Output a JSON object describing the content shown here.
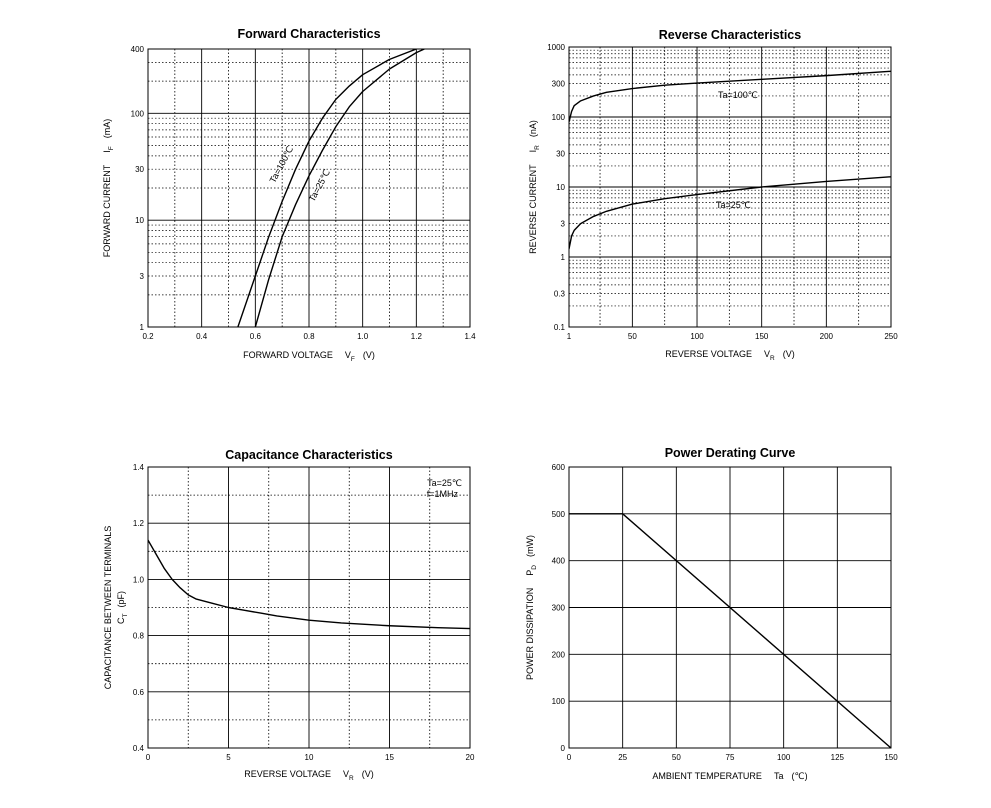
{
  "chart_data": [
    {
      "type": "line",
      "title": "Forward Characteristics",
      "xlabel": "FORWARD VOLTAGE",
      "xlabel_symbol": "V",
      "xlabel_subscript": "F",
      "xlabel_unit": "(V)",
      "ylabel": "FORWARD CURRENT",
      "ylabel_symbol": "I",
      "ylabel_subscript": "F",
      "ylabel_unit": "(mA)",
      "xlim": [
        0.2,
        1.4
      ],
      "ylim": [
        1,
        400
      ],
      "yscale": "log",
      "x_ticks": [
        "0.2",
        "0.4",
        "0.6",
        "0.8",
        "1.0",
        "1.2",
        "1.4"
      ],
      "y_ticks": [
        "1",
        "3",
        "10",
        "30",
        "100",
        "400"
      ],
      "grid": true,
      "series": [
        {
          "name": "Ta=100℃",
          "x": [
            0.535,
            0.6,
            0.65,
            0.7,
            0.75,
            0.8,
            0.85,
            0.9,
            0.95,
            1.0,
            1.1,
            1.2
          ],
          "y": [
            1,
            3,
            7,
            15,
            30,
            55,
            90,
            135,
            180,
            230,
            320,
            400
          ]
        },
        {
          "name": "Ta=25℃",
          "x": [
            0.6,
            0.65,
            0.7,
            0.75,
            0.8,
            0.85,
            0.9,
            0.95,
            1.0,
            1.1,
            1.2,
            1.23
          ],
          "y": [
            1,
            2.8,
            7,
            14,
            26,
            45,
            75,
            115,
            160,
            260,
            370,
            400
          ]
        }
      ]
    },
    {
      "type": "line",
      "title": "Reverse Characteristics",
      "xlabel": "REVERSE VOLTAGE",
      "xlabel_symbol": "V",
      "xlabel_subscript": "R",
      "xlabel_unit": "(V)",
      "ylabel": "REVERSE CURRENT",
      "ylabel_symbol": "I",
      "ylabel_subscript": "R",
      "ylabel_unit": "(nA)",
      "xlim": [
        1,
        250
      ],
      "ylim": [
        0.1,
        1000
      ],
      "yscale": "log",
      "x_ticks": [
        "1",
        "50",
        "100",
        "150",
        "200",
        "250"
      ],
      "y_ticks": [
        "0.1",
        "0.3",
        "1",
        "3",
        "10",
        "30",
        "100",
        "300",
        "1000"
      ],
      "grid": true,
      "series": [
        {
          "name": "Ta=100℃",
          "x": [
            1,
            3,
            5,
            10,
            20,
            30,
            50,
            75,
            100,
            150,
            200,
            250
          ],
          "y": [
            85,
            120,
            145,
            170,
            200,
            225,
            255,
            285,
            305,
            345,
            390,
            450
          ]
        },
        {
          "name": "Ta=25℃",
          "x": [
            1,
            3,
            5,
            10,
            20,
            30,
            50,
            75,
            100,
            150,
            200,
            250
          ],
          "y": [
            1.3,
            2,
            2.4,
            3,
            3.8,
            4.5,
            5.7,
            6.8,
            7.8,
            10,
            12,
            14
          ]
        }
      ]
    },
    {
      "type": "line",
      "title": "Capacitance Characteristics",
      "xlabel": "REVERSE VOLTAGE",
      "xlabel_symbol": "V",
      "xlabel_subscript": "R",
      "xlabel_unit": "(V)",
      "ylabel": "CAPACITANCE BETWEEN TERMINALS",
      "ylabel_symbol": "C",
      "ylabel_subscript": "T",
      "ylabel_unit": "(pF)",
      "xlim": [
        0,
        20
      ],
      "ylim": [
        0.4,
        1.4
      ],
      "x_ticks": [
        "0",
        "5",
        "10",
        "15",
        "20"
      ],
      "y_ticks": [
        "0.4",
        "0.6",
        "0.8",
        "1.0",
        "1.2",
        "1.4"
      ],
      "grid": true,
      "annotations": [
        "Ta=25℃",
        "f=1MHz"
      ],
      "series": [
        {
          "x": [
            0,
            0.5,
            1,
            1.5,
            2,
            2.5,
            3,
            4,
            5,
            6,
            7,
            8,
            10,
            12,
            15,
            18,
            20
          ],
          "y": [
            1.14,
            1.09,
            1.04,
            1.0,
            0.97,
            0.945,
            0.93,
            0.915,
            0.9,
            0.89,
            0.88,
            0.87,
            0.855,
            0.845,
            0.835,
            0.828,
            0.825
          ]
        }
      ]
    },
    {
      "type": "line",
      "title": "Power Derating Curve",
      "xlabel": "AMBIENT TEMPERATURE",
      "xlabel_symbol": "Ta",
      "xlabel_unit": "(℃)",
      "ylabel": "POWER DISSIPATION",
      "ylabel_symbol": "P",
      "ylabel_subscript": "D",
      "ylabel_unit": "(mW)",
      "xlim": [
        0,
        150
      ],
      "ylim": [
        0,
        600
      ],
      "x_ticks": [
        "0",
        "25",
        "50",
        "75",
        "100",
        "125",
        "150"
      ],
      "y_ticks": [
        "0",
        "100",
        "200",
        "300",
        "400",
        "500",
        "600"
      ],
      "grid": true,
      "series": [
        {
          "x": [
            0,
            25,
            150
          ],
          "y": [
            500,
            500,
            0
          ]
        }
      ]
    }
  ]
}
